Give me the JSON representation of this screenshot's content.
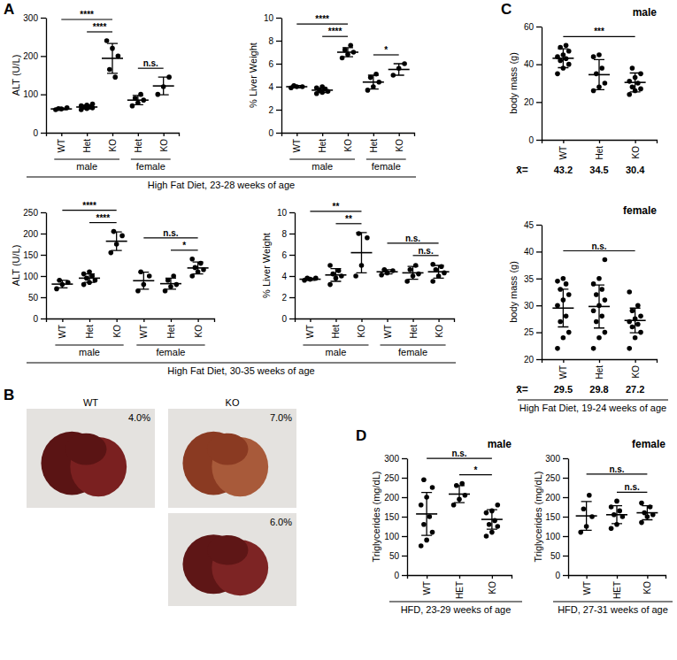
{
  "chart_data": [
    {
      "type": "scatter",
      "panel": "A",
      "y_label": "ALT (U/L)",
      "categories": [
        "WT",
        "Het",
        "KO",
        "Het",
        "KO"
      ],
      "points": [
        [
          60,
          62,
          65,
          63
        ],
        [
          60,
          63,
          65,
          67,
          68,
          70,
          72,
          75
        ],
        [
          240,
          220,
          200,
          165,
          145
        ],
        [
          70,
          78,
          85,
          90,
          100
        ],
        [
          100,
          120,
          145
        ]
      ],
      "means": [
        62,
        67,
        194,
        85,
        122
      ],
      "sd": [
        2,
        5,
        39,
        12,
        23
      ],
      "ylim": [
        0,
        300
      ],
      "yticks": [
        0,
        100,
        200,
        300
      ],
      "groups": [
        {
          "label": "male",
          "count": 3
        },
        {
          "label": "female",
          "count": 2
        }
      ],
      "significance": [
        {
          "from": 0,
          "to": 2,
          "label": "****"
        },
        {
          "from": 1,
          "to": 2,
          "label": "****"
        },
        {
          "from": 3,
          "to": 4,
          "label": "n.s."
        }
      ],
      "caption": "High Fat Diet, 23-28 weeks of age"
    },
    {
      "type": "scatter",
      "y_label": "% Liver Weight",
      "categories": [
        "WT",
        "Het",
        "KO",
        "Het",
        "KO"
      ],
      "points": [
        [
          3.9,
          4.0,
          4.0,
          4.1
        ],
        [
          3.4,
          3.5,
          3.6,
          3.7,
          3.8,
          3.9,
          4.0
        ],
        [
          6.5,
          6.8,
          7.0,
          7.2,
          7.6
        ],
        [
          3.7,
          4.0,
          4.4,
          4.8,
          5.1
        ],
        [
          5.0,
          5.6,
          6.0
        ]
      ],
      "means": [
        4.0,
        3.7,
        7.0,
        4.4,
        5.5
      ],
      "sd": [
        0.1,
        0.2,
        0.4,
        0.6,
        0.5
      ],
      "ylim": [
        0,
        10
      ],
      "yticks": [
        0,
        2,
        4,
        6,
        8,
        10
      ],
      "groups": [
        {
          "label": "male",
          "count": 3
        },
        {
          "label": "female",
          "count": 2
        }
      ],
      "significance": [
        {
          "from": 0,
          "to": 2,
          "label": "****"
        },
        {
          "from": 1,
          "to": 2,
          "label": "****"
        },
        {
          "from": 3,
          "to": 4,
          "label": "*"
        }
      ]
    },
    {
      "type": "scatter",
      "y_label": "ALT (U/L)",
      "categories": [
        "WT",
        "Het",
        "KO",
        "WT",
        "Het",
        "KO"
      ],
      "points": [
        [
          70,
          80,
          85,
          90
        ],
        [
          80,
          85,
          90,
          95,
          100,
          105,
          110
        ],
        [
          155,
          175,
          195,
          205
        ],
        [
          65,
          80,
          100,
          110
        ],
        [
          65,
          75,
          80,
          90,
          100
        ],
        [
          100,
          110,
          115,
          120,
          130,
          140
        ]
      ],
      "means": [
        81,
        95,
        182,
        89,
        82,
        119
      ],
      "sd": [
        9,
        10,
        22,
        20,
        13,
        14
      ],
      "ylim": [
        0,
        250
      ],
      "yticks": [
        0,
        50,
        100,
        150,
        200,
        250
      ],
      "groups": [
        {
          "label": "male",
          "count": 3
        },
        {
          "label": "female",
          "count": 3
        }
      ],
      "significance": [
        {
          "from": 0,
          "to": 2,
          "label": "****"
        },
        {
          "from": 1,
          "to": 2,
          "label": "****"
        },
        {
          "from": 3,
          "to": 5,
          "label": "n.s."
        },
        {
          "from": 4,
          "to": 5,
          "label": "*"
        }
      ],
      "caption": "High Fat Diet, 30-35 weeks of age"
    },
    {
      "type": "scatter",
      "y_label": "% Liver Weight",
      "categories": [
        "WT",
        "Het",
        "KO",
        "WT",
        "Het",
        "KO"
      ],
      "points": [
        [
          3.6,
          3.7,
          3.8,
          3.8
        ],
        [
          3.2,
          3.8,
          4.0,
          4.2,
          4.5,
          5.0
        ],
        [
          4.0,
          5.0,
          7.6,
          8.0
        ],
        [
          4.1,
          4.3,
          4.5,
          4.6
        ],
        [
          3.5,
          4.0,
          4.2,
          4.6,
          5.0
        ],
        [
          3.5,
          4.0,
          4.3,
          4.6,
          4.9,
          5.1
        ]
      ],
      "means": [
        3.7,
        4.1,
        6.2,
        4.4,
        4.3,
        4.4
      ],
      "sd": [
        0.1,
        0.6,
        1.9,
        0.2,
        0.6,
        0.6
      ],
      "ylim": [
        0,
        10
      ],
      "yticks": [
        0,
        2,
        4,
        6,
        8,
        10
      ],
      "groups": [
        {
          "label": "male",
          "count": 3
        },
        {
          "label": "female",
          "count": 3
        }
      ],
      "significance": [
        {
          "from": 0,
          "to": 2,
          "label": "**"
        },
        {
          "from": 1,
          "to": 2,
          "label": "**"
        },
        {
          "from": 3,
          "to": 5,
          "label": "n.s."
        },
        {
          "from": 4,
          "to": 5,
          "label": "n.s."
        }
      ]
    },
    {
      "type": "image",
      "panel": "B",
      "categories": [
        "WT",
        "KO",
        null
      ],
      "values": [
        4.0,
        7.0,
        6.0
      ],
      "value_labels": [
        "4.0%",
        "7.0%",
        "6.0%"
      ]
    },
    {
      "type": "scatter",
      "panel": "C",
      "title": "male",
      "y_label": "body mass (g)",
      "categories": [
        "WT",
        "Het",
        "KO"
      ],
      "points": [
        [
          35,
          38,
          40,
          42,
          43,
          44,
          45,
          47,
          49,
          50
        ],
        [
          26,
          28,
          30,
          35,
          38,
          44,
          45
        ],
        [
          24,
          26,
          27,
          28,
          30,
          31,
          33,
          35,
          38
        ]
      ],
      "means": [
        43.2,
        34.5,
        30.4
      ],
      "sd": [
        5,
        8,
        5
      ],
      "mean_symbol": "x̄=",
      "ylim": [
        0,
        60
      ],
      "yticks": [
        0,
        20,
        40,
        60
      ],
      "significance": [
        {
          "from": 0,
          "to": 2,
          "label": "***"
        }
      ]
    },
    {
      "type": "scatter",
      "title": "female",
      "y_label": "body mass (g)",
      "categories": [
        "WT",
        "Het",
        "KO"
      ],
      "points": [
        [
          22,
          24,
          25,
          27,
          28,
          30,
          31,
          32,
          33,
          34,
          34.5,
          35
        ],
        [
          22,
          24,
          25,
          27,
          28,
          29,
          30,
          31,
          32,
          33,
          34,
          35,
          38.5
        ],
        [
          22,
          24,
          25,
          26,
          26.5,
          27,
          27.5,
          28,
          29,
          30,
          32.5
        ]
      ],
      "means": [
        29.5,
        29.8,
        27.2
      ],
      "sd": [
        3.5,
        4,
        2.3
      ],
      "mean_symbol": "x̄=",
      "ylim": [
        20,
        45
      ],
      "yticks": [
        20,
        25,
        30,
        35,
        40,
        45
      ],
      "significance": [
        {
          "from": 0,
          "to": 2,
          "label": "n.s."
        }
      ],
      "caption": "High Fat Diet, 19-24 weeks of age"
    },
    {
      "type": "scatter",
      "panel": "D",
      "title": "male",
      "y_label": "Triglycerides (mg/dL)",
      "categories": [
        "WT",
        "HET",
        "KO"
      ],
      "points": [
        [
          75,
          90,
          110,
          130,
          150,
          180,
          200,
          225,
          245
        ],
        [
          180,
          195,
          205,
          230,
          235
        ],
        [
          100,
          110,
          125,
          130,
          140,
          160,
          165,
          180
        ]
      ],
      "means": [
        157,
        208,
        143
      ],
      "sd": [
        55,
        22,
        25
      ],
      "ylim": [
        0,
        300
      ],
      "yticks": [
        0,
        50,
        100,
        150,
        200,
        250,
        300
      ],
      "significance": [
        {
          "from": 0,
          "to": 2,
          "label": "n.s."
        },
        {
          "from": 1,
          "to": 2,
          "label": "*"
        }
      ],
      "caption": "HFD, 23-29 weeks of age"
    },
    {
      "type": "scatter",
      "title": "female",
      "y_label": "Triglycerides (mg/dL)",
      "categories": [
        "WT",
        "HET",
        "KO"
      ],
      "points": [
        [
          110,
          125,
          150,
          170,
          205
        ],
        [
          120,
          130,
          150,
          155,
          165,
          175,
          190
        ],
        [
          135,
          150,
          155,
          160,
          175,
          185
        ]
      ],
      "means": [
        152,
        155,
        160
      ],
      "sd": [
        37,
        23,
        18
      ],
      "ylim": [
        0,
        300
      ],
      "yticks": [
        0,
        50,
        100,
        150,
        200,
        250,
        300
      ],
      "significance": [
        {
          "from": 0,
          "to": 2,
          "label": "n.s."
        },
        {
          "from": 1,
          "to": 2,
          "label": "n.s."
        }
      ],
      "caption": "HFD, 27-31 weeks of age"
    }
  ]
}
